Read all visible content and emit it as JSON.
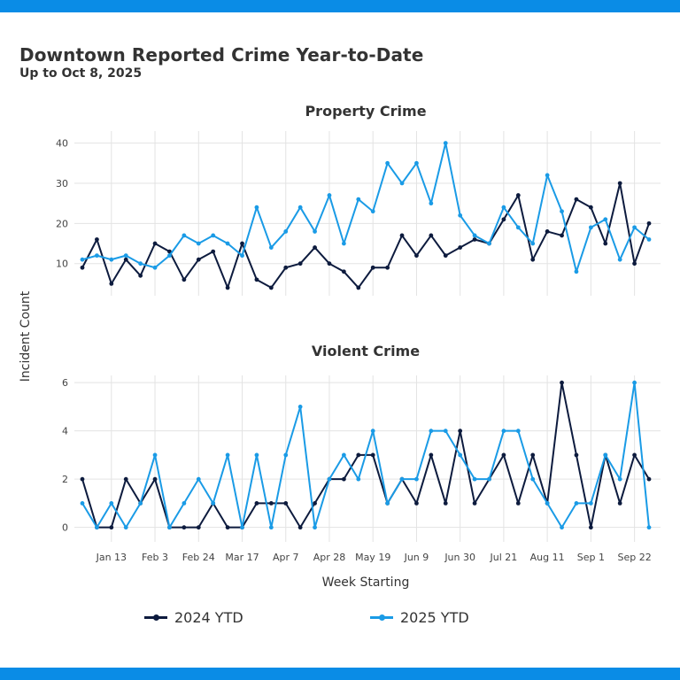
{
  "header": {
    "title": "Downtown Reported Crime Year-to-Date",
    "subtitle": "Up to Oct  8, 2025"
  },
  "colors": {
    "series_2024": "#0d1b3e",
    "series_2025": "#1a9be6",
    "band": "#0a8ce6",
    "grid": "#e3e3e3"
  },
  "chart_data": [
    {
      "type": "line",
      "title": "Property Crime",
      "xlabel": "Week Starting",
      "ylabel": "Incident Count",
      "x_ticks": [
        "Jan 13",
        "Feb  3",
        "Feb 24",
        "Mar 17",
        "Apr  7",
        "Apr 28",
        "May 19",
        "Jun  9",
        "Jun 30",
        "Jul 21",
        "Aug 11",
        "Sep  1",
        "Sep 22"
      ],
      "y_ticks": [
        10,
        20,
        30,
        40
      ],
      "ylim": [
        2,
        43
      ],
      "grid": true,
      "legend_position": "bottom",
      "series": [
        {
          "name": "2024 YTD",
          "values": [
            9,
            16,
            5,
            11,
            7,
            15,
            13,
            6,
            11,
            13,
            4,
            15,
            6,
            4,
            9,
            10,
            14,
            10,
            8,
            4,
            9,
            9,
            17,
            12,
            17,
            12,
            14,
            16,
            15,
            21,
            27,
            11,
            18,
            17,
            26,
            24,
            15,
            30,
            10,
            20
          ]
        },
        {
          "name": "2025 YTD",
          "values": [
            11,
            12,
            11,
            12,
            10,
            9,
            12,
            17,
            15,
            17,
            15,
            12,
            24,
            14,
            18,
            24,
            18,
            27,
            15,
            26,
            23,
            35,
            30,
            35,
            25,
            40,
            22,
            17,
            15,
            24,
            19,
            15,
            32,
            23,
            8,
            19,
            21,
            11,
            19,
            16
          ]
        }
      ]
    },
    {
      "type": "line",
      "title": "Violent Crime",
      "xlabel": "Week Starting",
      "ylabel": "Incident Count",
      "x_ticks": [
        "Jan 13",
        "Feb  3",
        "Feb 24",
        "Mar 17",
        "Apr  7",
        "Apr 28",
        "May 19",
        "Jun  9",
        "Jun 30",
        "Jul 21",
        "Aug 11",
        "Sep  1",
        "Sep 22"
      ],
      "y_ticks": [
        0,
        2,
        4,
        6
      ],
      "ylim": [
        -0.6,
        6.3
      ],
      "grid": true,
      "legend_position": "bottom",
      "series": [
        {
          "name": "2024 YTD",
          "values": [
            2,
            0,
            0,
            2,
            1,
            2,
            0,
            0,
            0,
            1,
            0,
            0,
            1,
            1,
            1,
            0,
            1,
            2,
            2,
            3,
            3,
            1,
            2,
            1,
            3,
            1,
            4,
            1,
            2,
            3,
            1,
            3,
            1,
            6,
            3,
            0,
            3,
            1,
            3,
            2
          ]
        },
        {
          "name": "2025 YTD",
          "values": [
            1,
            0,
            1,
            0,
            1,
            3,
            0,
            1,
            2,
            1,
            3,
            0,
            3,
            0,
            3,
            5,
            0,
            2,
            3,
            2,
            4,
            1,
            2,
            2,
            4,
            4,
            3,
            2,
            2,
            4,
            4,
            2,
            1,
            0,
            1,
            1,
            3,
            2,
            6,
            0
          ]
        }
      ]
    }
  ]
}
